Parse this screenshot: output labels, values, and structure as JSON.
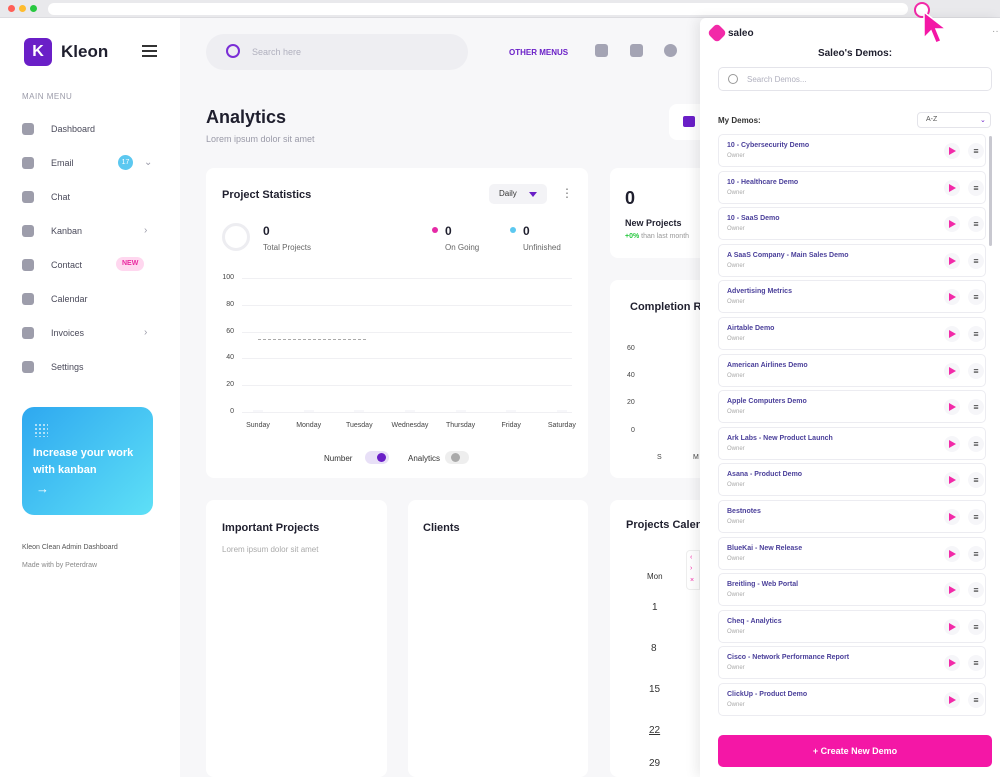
{
  "sidebar": {
    "brand": "Kleon",
    "logo_letter": "K",
    "menu_title": "MAIN MENU",
    "items": [
      {
        "label": "Dashboard"
      },
      {
        "label": "Email",
        "badge": "17"
      },
      {
        "label": "Chat"
      },
      {
        "label": "Kanban"
      },
      {
        "label": "Contact",
        "badge": "NEW"
      },
      {
        "label": "Calendar"
      },
      {
        "label": "Invoices"
      },
      {
        "label": "Settings"
      }
    ],
    "promo": {
      "text": "Increase your work with kanban",
      "arrow": "→"
    },
    "footer_title": "Kleon Clean Admin Dashboard",
    "footer_credit": "Made with by Peterdraw"
  },
  "topbar": {
    "search_placeholder": "Search here",
    "other_menus": "OTHER MENUS"
  },
  "main": {
    "title": "Analytics",
    "subtitle": "Lorem ipsum dolor sit amet",
    "project_statistics": {
      "title": "Project Statistics",
      "period": "Daily",
      "total_value": "0",
      "total_label": "Total Projects",
      "ongoing_value": "0",
      "ongoing_label": "On Going",
      "unfinished_value": "0",
      "unfinished_label": "Unfinished",
      "legend_number": "Number",
      "legend_analytics": "Analytics"
    },
    "new_projects": {
      "value": "0",
      "label": "New Projects",
      "change": "+0%",
      "change_text": "than last month"
    },
    "completion": {
      "title": "Completion R",
      "yticks": [
        "60",
        "40",
        "20",
        "0"
      ],
      "xtick_labels": [
        "S",
        "M"
      ]
    },
    "important_projects": {
      "title": "Important Projects",
      "subtitle": "Lorem ipsum dolor sit amet"
    },
    "clients": {
      "title": "Clients"
    },
    "projects_calendar": {
      "title": "Projects Calen",
      "day_header": "Mon",
      "days": [
        "1",
        "8",
        "15",
        "22",
        "29"
      ]
    }
  },
  "chart_data": {
    "type": "bar",
    "title": "Project Statistics",
    "categories": [
      "Sunday",
      "Monday",
      "Tuesday",
      "Wednesday",
      "Thursday",
      "Friday",
      "Saturday"
    ],
    "values": [
      0,
      0,
      0,
      0,
      0,
      0,
      0
    ],
    "yticks": [
      "100",
      "80",
      "60",
      "40",
      "20",
      "0"
    ],
    "ylim": [
      0,
      100
    ],
    "grid": true
  },
  "panel": {
    "brand": "saleo",
    "title": "Saleo's Demos:",
    "search_placeholder": "Search Demos...",
    "my_demos_label": "My Demos:",
    "sort_value": "A-Z",
    "demos": [
      {
        "name": "10 - Cybersecurity Demo",
        "owner": "Owner"
      },
      {
        "name": "10 - Healthcare Demo",
        "owner": "Owner"
      },
      {
        "name": "10 - SaaS Demo",
        "owner": "Owner"
      },
      {
        "name": "A SaaS Company - Main Sales Demo",
        "owner": "Owner"
      },
      {
        "name": "Advertising Metrics",
        "owner": "Owner"
      },
      {
        "name": "Airtable Demo",
        "owner": "Owner"
      },
      {
        "name": "American Airlines Demo",
        "owner": "Owner"
      },
      {
        "name": "Apple Computers Demo",
        "owner": "Owner"
      },
      {
        "name": "Ark Labs - New Product Launch",
        "owner": "Owner"
      },
      {
        "name": "Asana - Product Demo",
        "owner": "Owner"
      },
      {
        "name": "Bestnotes",
        "owner": "Owner"
      },
      {
        "name": "BlueKai - New Release",
        "owner": "Owner"
      },
      {
        "name": "Breitling - Web Portal",
        "owner": "Owner"
      },
      {
        "name": "Cheq - Analytics",
        "owner": "Owner"
      },
      {
        "name": "Cisco - Network Performance Report",
        "owner": "Owner"
      },
      {
        "name": "ClickUp - Product Demo",
        "owner": "Owner"
      }
    ],
    "create_button": "+ Create New Demo",
    "accent": "#f417a6"
  }
}
